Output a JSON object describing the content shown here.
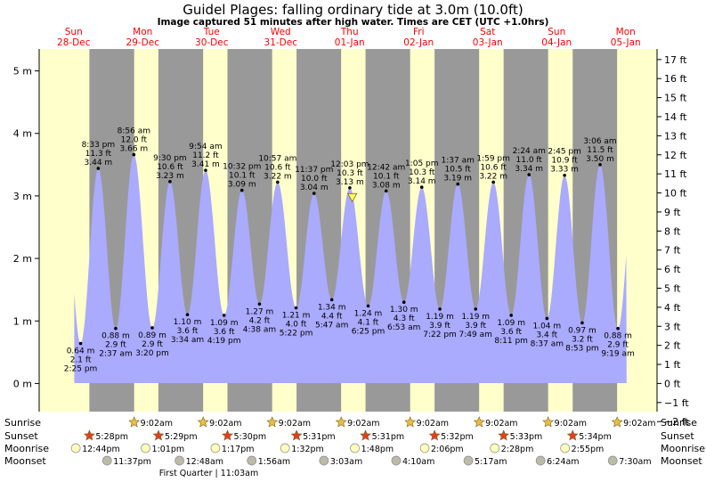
{
  "title": "Guidel Plages: falling  ordinary tide at 3.0m (10.0ft)",
  "subtitle": "Image captured 51 minutes after high water. Times are CET (UTC +1.0hrs)",
  "days": [
    {
      "name": "Sun",
      "date": "28-Dec"
    },
    {
      "name": "Mon",
      "date": "29-Dec"
    },
    {
      "name": "Tue",
      "date": "30-Dec"
    },
    {
      "name": "Wed",
      "date": "31-Dec"
    },
    {
      "name": "Thu",
      "date": "01-Jan"
    },
    {
      "name": "Fri",
      "date": "02-Jan"
    },
    {
      "name": "Sat",
      "date": "03-Jan"
    },
    {
      "name": "Sun",
      "date": "04-Jan"
    },
    {
      "name": "Mon",
      "date": "05-Jan"
    }
  ],
  "chart_data": {
    "type": "area",
    "y_left_ticks": [
      "0 m",
      "1 m",
      "2 m",
      "3 m",
      "4 m",
      "5 m"
    ],
    "y_left_range_m": [
      -0.45,
      5.35
    ],
    "y_right_ticks": [
      "−2 ft",
      "−1 ft",
      "0 ft",
      "1 ft",
      "2 ft",
      "3 ft",
      "4 ft",
      "5 ft",
      "6 ft",
      "7 ft",
      "8 ft",
      "9 ft",
      "10 ft",
      "11 ft",
      "12 ft",
      "13 ft",
      "14 ft",
      "15 ft",
      "16 ft",
      "17 ft"
    ],
    "current_level_m": 2.98,
    "tides": [
      {
        "type": "low",
        "time": "2:25 pm",
        "ft": "2.1 ft",
        "m": "0.64 m",
        "h": 0.64
      },
      {
        "type": "high",
        "time": "8:33 pm",
        "ft": "11.3 ft",
        "m": "3.44 m",
        "h": 3.44
      },
      {
        "type": "low",
        "time": "2:37 am",
        "ft": "2.9 ft",
        "m": "0.88 m",
        "h": 0.88
      },
      {
        "type": "high",
        "time": "8:56 am",
        "ft": "12.0 ft",
        "m": "3.66 m",
        "h": 3.66
      },
      {
        "type": "low",
        "time": "3:20 pm",
        "ft": "2.9 ft",
        "m": "0.89 m",
        "h": 0.89
      },
      {
        "type": "high",
        "time": "9:30 pm",
        "ft": "10.6 ft",
        "m": "3.23 m",
        "h": 3.23
      },
      {
        "type": "low",
        "time": "3:34 am",
        "ft": "3.6 ft",
        "m": "1.10 m",
        "h": 1.1
      },
      {
        "type": "high",
        "time": "9:54 am",
        "ft": "11.2 ft",
        "m": "3.41 m",
        "h": 3.41
      },
      {
        "type": "low",
        "time": "4:19 pm",
        "ft": "3.6 ft",
        "m": "1.09 m",
        "h": 1.09
      },
      {
        "type": "high",
        "time": "10:32 pm",
        "ft": "10.1 ft",
        "m": "3.09 m",
        "h": 3.09
      },
      {
        "type": "low",
        "time": "4:38 am",
        "ft": "4.2 ft",
        "m": "1.27 m",
        "h": 1.27
      },
      {
        "type": "high",
        "time": "10:57 am",
        "ft": "10.6 ft",
        "m": "3.22 m",
        "h": 3.22
      },
      {
        "type": "low",
        "time": "5:22 pm",
        "ft": "4.0 ft",
        "m": "1.21 m",
        "h": 1.21
      },
      {
        "type": "high",
        "time": "11:37 pm",
        "ft": "10.0 ft",
        "m": "3.04 m",
        "h": 3.04
      },
      {
        "type": "low",
        "time": "5:47 am",
        "ft": "4.4 ft",
        "m": "1.34 m",
        "h": 1.34
      },
      {
        "type": "high",
        "time": "12:03 pm",
        "ft": "10.3 ft",
        "m": "3.13 m",
        "h": 3.13
      },
      {
        "type": "low",
        "time": "6:25 pm",
        "ft": "4.1 ft",
        "m": "1.24 m",
        "h": 1.24
      },
      {
        "type": "high",
        "time": "12:42 am",
        "ft": "10.1 ft",
        "m": "3.08 m",
        "h": 3.08
      },
      {
        "type": "low",
        "time": "6:53 am",
        "ft": "4.3 ft",
        "m": "1.30 m",
        "h": 1.3
      },
      {
        "type": "high",
        "time": "1:05 pm",
        "ft": "10.3 ft",
        "m": "3.14 m",
        "h": 3.14
      },
      {
        "type": "low",
        "time": "7:22 pm",
        "ft": "3.9 ft",
        "m": "1.19 m",
        "h": 1.19
      },
      {
        "type": "high",
        "time": "1:37 am",
        "ft": "10.5 ft",
        "m": "3.19 m",
        "h": 3.19
      },
      {
        "type": "low",
        "time": "7:49 am",
        "ft": "3.9 ft",
        "m": "1.19 m",
        "h": 1.19
      },
      {
        "type": "high",
        "time": "1:59 pm",
        "ft": "10.6 ft",
        "m": "3.22 m",
        "h": 3.22
      },
      {
        "type": "low",
        "time": "8:11 pm",
        "ft": "3.6 ft",
        "m": "1.09 m",
        "h": 1.09
      },
      {
        "type": "high",
        "time": "2:24 am",
        "ft": "11.0 ft",
        "m": "3.34 m",
        "h": 3.34
      },
      {
        "type": "low",
        "time": "8:37 am",
        "ft": "3.4 ft",
        "m": "1.04 m",
        "h": 1.04
      },
      {
        "type": "high",
        "time": "2:45 pm",
        "ft": "10.9 ft",
        "m": "3.33 m",
        "h": 3.33
      },
      {
        "type": "low",
        "time": "8:53 pm",
        "ft": "3.2 ft",
        "m": "0.97 m",
        "h": 0.97
      },
      {
        "type": "high",
        "time": "3:06 am",
        "ft": "11.5 ft",
        "m": "3.50 m",
        "h": 3.5
      },
      {
        "type": "low",
        "time": "9:19 am",
        "ft": "2.9 ft",
        "m": "0.88 m",
        "h": 0.88
      }
    ]
  },
  "astro": {
    "row_labels": [
      "Sunrise",
      "Sunset",
      "Moonrise",
      "Moonset"
    ],
    "sunrise": [
      "9:02am",
      "9:02am",
      "9:02am",
      "9:02am",
      "9:02am",
      "9:02am",
      "9:02am",
      "9:02am"
    ],
    "sunset": [
      "5:28pm",
      "5:29pm",
      "5:30pm",
      "5:31pm",
      "5:31pm",
      "5:32pm",
      "5:33pm",
      "5:34pm"
    ],
    "moonrise": [
      "12:44pm",
      "1:01pm",
      "1:17pm",
      "1:32pm",
      "1:48pm",
      "2:06pm",
      "2:28pm",
      "2:55pm"
    ],
    "moonset": [
      "11:37pm",
      "12:48am",
      "1:56am",
      "3:03am",
      "4:10am",
      "5:17am",
      "6:24am",
      "7:30am"
    ],
    "moon_phase": "First Quarter | 11:03am",
    "colors": {
      "day": "#ffffcc",
      "night": "#999999",
      "water": "#aaaaff",
      "label_red": "#ff0000",
      "sun_star": "#e8c040",
      "sunset_star": "#e04020",
      "moonrise": "#ffffbb",
      "moonset": "#bbbbaa"
    }
  }
}
